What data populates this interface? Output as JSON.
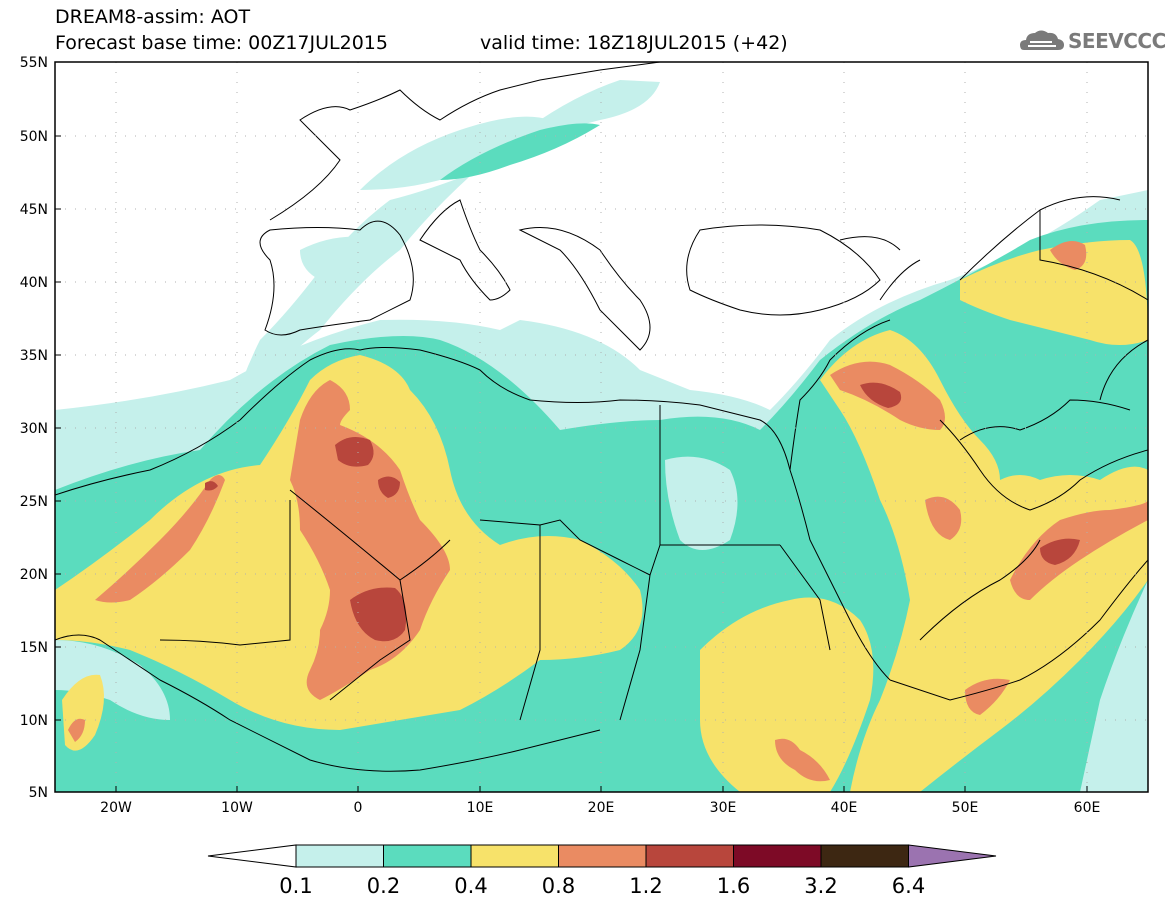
{
  "title": {
    "line1": "DREAM8-assim: AOT",
    "line2": "Forecast base time: 00Z17JUL2015",
    "valid": "valid time: 18Z18JUL2015 (+42)"
  },
  "logo": {
    "text": "SEEVCCC",
    "icon": "cloud-icon"
  },
  "map": {
    "lat_ticks": [
      "55N",
      "50N",
      "45N",
      "40N",
      "35N",
      "30N",
      "25N",
      "20N",
      "15N",
      "10N",
      "5N"
    ],
    "lon_ticks": [
      "20W",
      "10W",
      "0",
      "10E",
      "20E",
      "30E",
      "40E",
      "50E",
      "60E"
    ],
    "lon_range": [
      -25,
      65
    ],
    "lat_range": [
      5,
      55
    ]
  },
  "colorbar": {
    "labels": [
      "0.1",
      "0.2",
      "0.4",
      "0.8",
      "1.2",
      "1.6",
      "3.2",
      "6.4"
    ],
    "colors": {
      "c1": "#c5f0eb",
      "c2": "#5bdcbe",
      "c3": "#f7e26a",
      "c4": "#ea8b62",
      "c5": "#b8463c",
      "c6": "#7d0a26",
      "c7": "#3d2712",
      "c8": "#9b73b0"
    }
  }
}
